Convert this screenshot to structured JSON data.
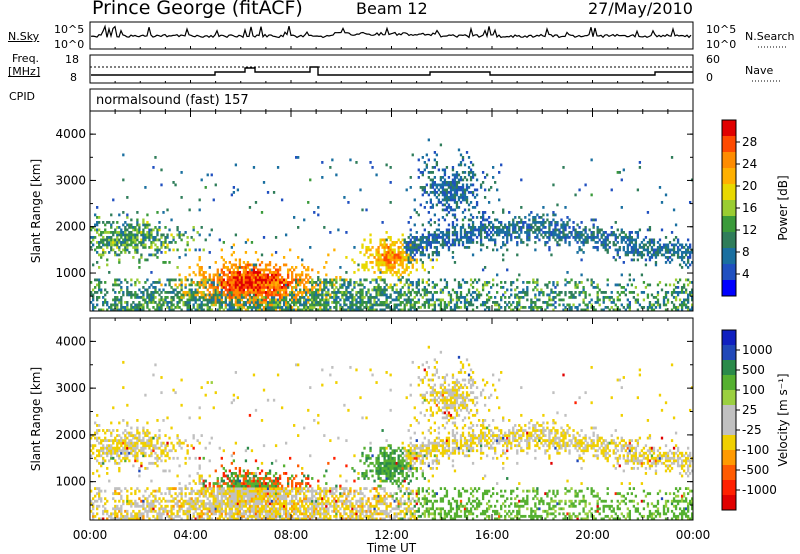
{
  "header": {
    "station": "Prince George (fitACF)",
    "beam": "Beam 12",
    "date": "27/May/2010"
  },
  "noise_panel": {
    "left_label": "N.Sky",
    "right_label": "N.Search",
    "left_ticks": [
      "10^5",
      "10^0"
    ],
    "right_ticks": [
      "10^5",
      "10^0"
    ]
  },
  "freq_panel": {
    "left_label_line1": "Freq.",
    "left_label_line2": "[MHz]",
    "left_ticks": [
      "18",
      "8"
    ],
    "right_label": "Nave",
    "right_ticks": [
      "60",
      "0"
    ]
  },
  "cpid_panel": {
    "label": "CPID",
    "text": "normalsound (fast) 157"
  },
  "chart_data": [
    {
      "type": "heatmap",
      "name": "power",
      "ylabel": "Slant Range [km]",
      "ylim": [
        180,
        4500
      ],
      "yticks": [
        1000,
        2000,
        3000,
        4000
      ],
      "xlim_hours": [
        0,
        24
      ],
      "colorbar": {
        "label": "Power [dB]",
        "ticks": [
          "28",
          "24",
          "20",
          "16",
          "12",
          "8",
          "4"
        ],
        "colors": [
          "#e00000",
          "#ff4a00",
          "#ff8c00",
          "#ffb000",
          "#e8d800",
          "#9acd32",
          "#3a9a3a",
          "#2f7d5a",
          "#1a6fa0",
          "#2050c0",
          "#0000ff"
        ]
      }
    },
    {
      "type": "heatmap",
      "name": "velocity",
      "ylabel": "Slant Range [km]",
      "ylim": [
        180,
        4500
      ],
      "yticks": [
        1000,
        2000,
        3000,
        4000
      ],
      "xlim_hours": [
        0,
        24
      ],
      "xlabel": "Time UT",
      "xticks": [
        "00:00",
        "04:00",
        "08:00",
        "12:00",
        "16:00",
        "20:00",
        "00:00"
      ],
      "colorbar": {
        "label": "Velocity [m s⁻¹]",
        "ticks": [
          "1000",
          "500",
          "100",
          "25",
          "-25",
          "-100",
          "-500",
          "-1000"
        ],
        "colors": [
          "#1020c0",
          "#2048b8",
          "#2a8a4a",
          "#55b030",
          "#9bd040",
          "#c0c0c0",
          "#c0c0c0",
          "#f0d000",
          "#ff9a00",
          "#ff5a00",
          "#ff2000",
          "#e00000"
        ]
      }
    }
  ]
}
